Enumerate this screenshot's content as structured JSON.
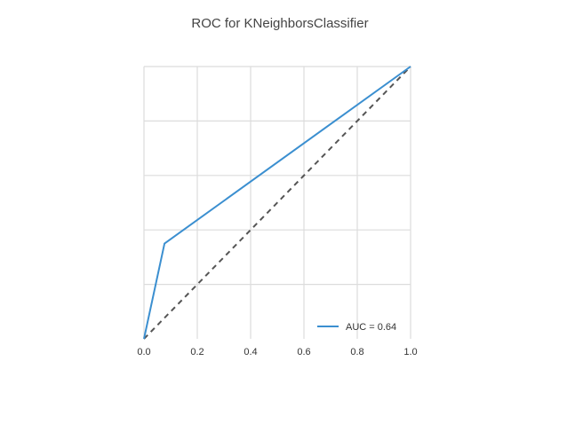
{
  "chart_data": {
    "type": "line",
    "title": "ROC for KNeighborsClassifier",
    "xlabel": "",
    "ylabel": "",
    "xlim": [
      0.0,
      1.0
    ],
    "ylim": [
      0.0,
      1.0
    ],
    "x_ticks": [
      "0.0",
      "0.2",
      "0.4",
      "0.6",
      "0.8",
      "1.0"
    ],
    "y_grid": [
      0.2,
      0.4,
      0.6,
      0.8,
      1.0
    ],
    "grid": true,
    "legend_position": "lower-right",
    "series": [
      {
        "name": "AUC = 0.64",
        "color": "#3b8fd0",
        "x": [
          0.0,
          0.077,
          1.0
        ],
        "y": [
          0.0,
          0.35,
          1.0
        ]
      }
    ],
    "reference_line": {
      "style": "dashed",
      "color": "#555555",
      "x": [
        0.0,
        1.0
      ],
      "y": [
        0.0,
        1.0
      ]
    }
  }
}
